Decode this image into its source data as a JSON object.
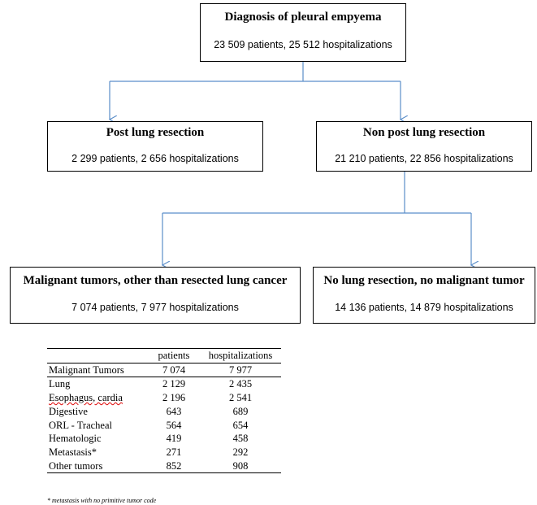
{
  "flowchart": {
    "top": {
      "title": "Diagnosis of pleural empyema",
      "subtitle": "23 509 patients, 25 512 hospitalizations"
    },
    "post_resection": {
      "title": "Post lung resection",
      "subtitle": "2 299 patients, 2 656 hospitalizations"
    },
    "non_post_resection": {
      "title": "Non post lung resection",
      "subtitle": "21 210 patients, 22 856 hospitalizations"
    },
    "malignant": {
      "title": "Malignant tumors, other than resected lung cancer",
      "subtitle": "7 074 patients, 7 977 hospitalizations"
    },
    "no_malignant": {
      "title": "No lung resection, no malignant tumor",
      "subtitle": "14 136 patients, 14 879 hospitalizations"
    },
    "arrow_color": "#5b8ec9"
  },
  "table": {
    "headers": [
      "",
      "patients",
      "hospitalizations"
    ],
    "rows": [
      {
        "label": "Malignant Tumors",
        "patients": "7 074",
        "hospitalizations": "7 977"
      },
      {
        "label": "Lung",
        "patients": "2 129",
        "hospitalizations": "2 435"
      },
      {
        "label": "Esophagus, cardia",
        "patients": "2 196",
        "hospitalizations": "2 541"
      },
      {
        "label": "Digestive",
        "patients": "643",
        "hospitalizations": "689"
      },
      {
        "label": "ORL - Tracheal",
        "patients": "564",
        "hospitalizations": "654"
      },
      {
        "label": "Hematologic",
        "patients": "419",
        "hospitalizations": "458"
      },
      {
        "label": "Metastasis*",
        "patients": "271",
        "hospitalizations": "292"
      },
      {
        "label": "Other tumors",
        "patients": "852",
        "hospitalizations": "908"
      }
    ],
    "footnote": "* metastasis with no primitive tumor code"
  }
}
